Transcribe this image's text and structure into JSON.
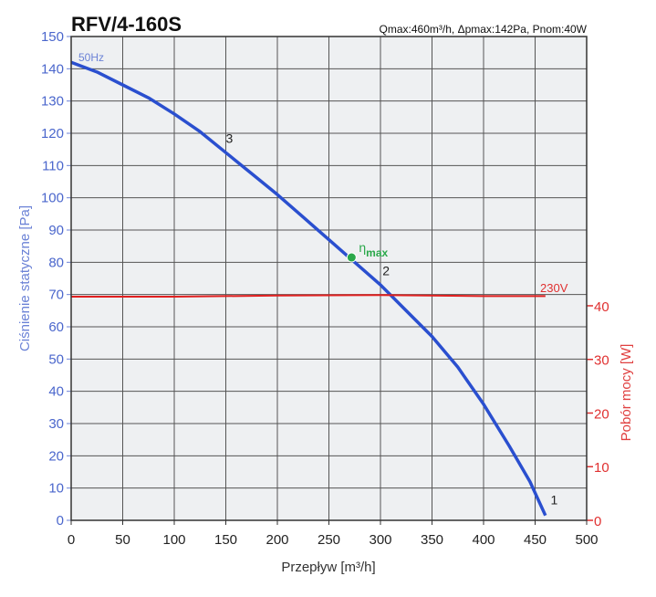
{
  "chart_data": {
    "type": "line",
    "title": "RFV/4-160S",
    "subtitle": "Qmax:460m³/h, Δpmax:142Pa, Pnom:40W",
    "xlabel": "Przepływ [m³/h]",
    "ylabel": "Ciśnienie statyczne [Pa]",
    "y2label": "Pobór mocy [W]",
    "xlim": [
      0,
      500
    ],
    "ylim": [
      0,
      150
    ],
    "y2lim": [
      0,
      90.2
    ],
    "xticks": [
      "0",
      "50",
      "100",
      "150",
      "200",
      "250",
      "300",
      "350",
      "400",
      "450",
      "500"
    ],
    "yticks": [
      "0",
      "10",
      "20",
      "30",
      "40",
      "50",
      "60",
      "70",
      "80",
      "90",
      "100",
      "110",
      "120",
      "130",
      "140",
      "150"
    ],
    "y2ticks": [
      "0",
      "10",
      "20",
      "30",
      "40"
    ],
    "grid": true,
    "series": [
      {
        "name": "50Hz",
        "axis": "left",
        "color": "#2a4fcf",
        "x": [
          0,
          25,
          50,
          75,
          100,
          125,
          150,
          175,
          200,
          225,
          250,
          275,
          300,
          325,
          350,
          375,
          400,
          425,
          445,
          460
        ],
        "y": [
          142,
          139,
          135,
          131,
          126,
          120.5,
          114,
          107.5,
          101,
          94,
          87,
          80,
          73,
          65,
          57,
          47.5,
          36,
          23,
          12,
          1.5
        ]
      },
      {
        "name": "230V",
        "axis": "right",
        "color": "#e02020",
        "x": [
          0,
          100,
          200,
          300,
          400,
          460
        ],
        "y": [
          41.7,
          41.7,
          41.9,
          42,
          41.8,
          41.8
        ]
      }
    ],
    "annotations": [
      {
        "text": "3",
        "x": 150,
        "y": 117
      },
      {
        "text": "2",
        "x": 302,
        "y": 76
      },
      {
        "text": "1",
        "x": 465,
        "y": 5
      }
    ],
    "eta_max": {
      "label": "η",
      "sub": "max",
      "x": 272,
      "y": 81.5,
      "color": "#2aa84a"
    }
  }
}
